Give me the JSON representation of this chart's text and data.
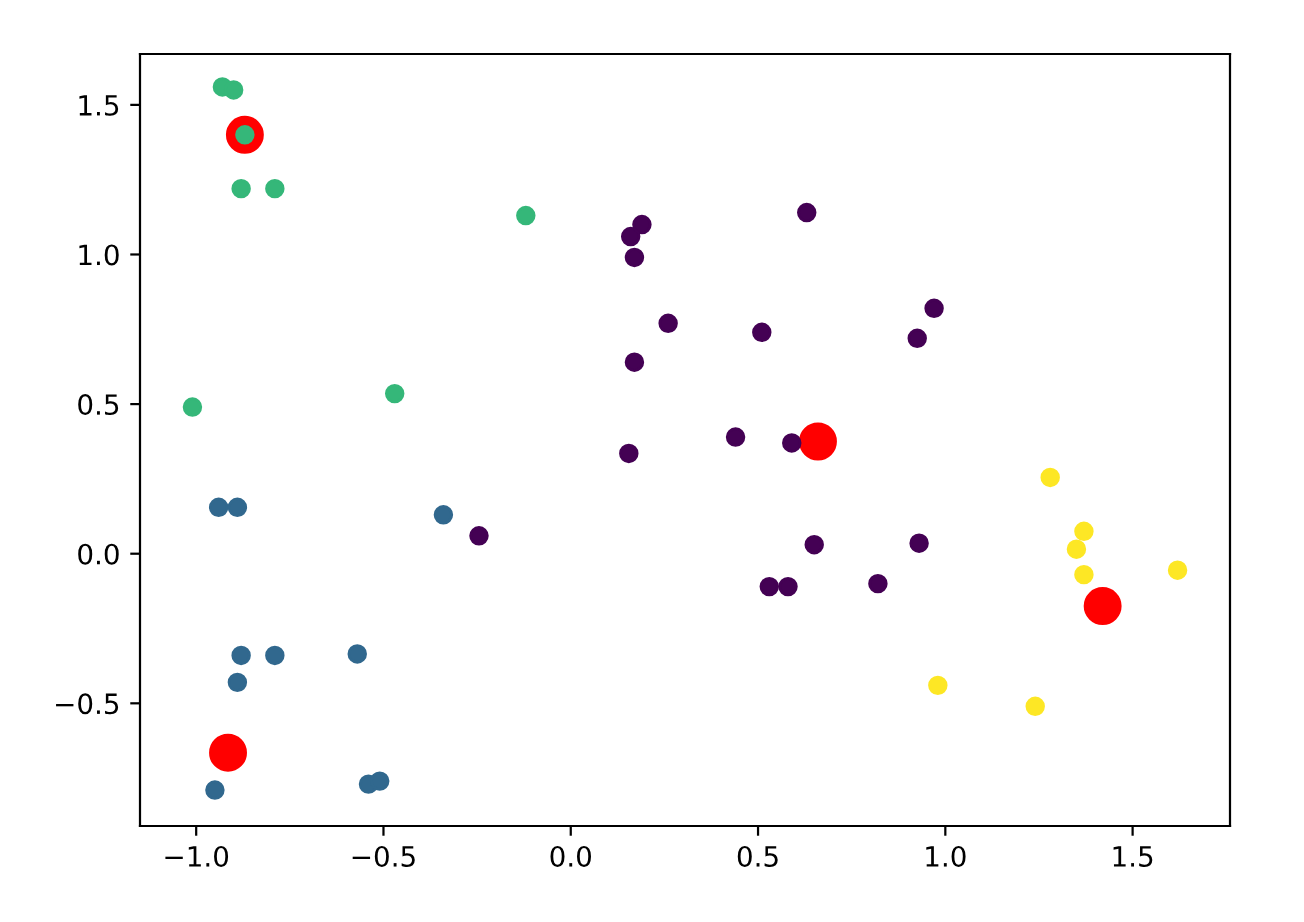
{
  "chart_data": {
    "type": "scatter",
    "xlim": [
      -1.15,
      1.76
    ],
    "ylim": [
      -0.91,
      1.67
    ],
    "xticks": [
      {
        "value": -1.0,
        "label": "−1.0"
      },
      {
        "value": -0.5,
        "label": "−0.5"
      },
      {
        "value": 0.0,
        "label": "0.0"
      },
      {
        "value": 0.5,
        "label": "0.5"
      },
      {
        "value": 1.0,
        "label": "1.0"
      },
      {
        "value": 1.5,
        "label": "1.5"
      }
    ],
    "yticks": [
      {
        "value": -0.5,
        "label": "−0.5"
      },
      {
        "value": 0.0,
        "label": "0.0"
      },
      {
        "value": 0.5,
        "label": "0.5"
      },
      {
        "value": 1.0,
        "label": "1.0"
      },
      {
        "value": 1.5,
        "label": "1.5"
      }
    ],
    "grid": false,
    "marker": "circle",
    "series": [
      {
        "type": "bubble",
        "color": "#ff0000",
        "sizes": [
          1,
          1,
          1,
          1
        ],
        "x": [
          -0.87,
          0.66,
          1.42,
          -0.915
        ],
        "values": [
          1.4,
          0.375,
          -0.175,
          -0.665
        ]
      },
      {
        "color": "#440154",
        "x": [
          0.19,
          0.16,
          0.17,
          0.26,
          0.17,
          0.63,
          0.97,
          0.925,
          0.51,
          0.44,
          0.155,
          0.59,
          0.65,
          0.93,
          0.53,
          0.58,
          0.82,
          -0.245
        ],
        "values": [
          1.1,
          1.06,
          0.99,
          0.77,
          0.64,
          1.14,
          0.82,
          0.72,
          0.74,
          0.39,
          0.335,
          0.37,
          0.03,
          0.035,
          -0.11,
          -0.11,
          -0.1,
          0.06
        ]
      },
      {
        "color": "#31688e",
        "x": [
          -0.94,
          -0.89,
          -0.34,
          -0.88,
          -0.79,
          -0.89,
          -0.57,
          -0.95,
          -0.54,
          -0.51
        ],
        "values": [
          0.155,
          0.155,
          0.13,
          -0.34,
          -0.34,
          -0.43,
          -0.335,
          -0.79,
          -0.77,
          -0.76
        ]
      },
      {
        "color": "#35b779",
        "x": [
          -0.93,
          -0.9,
          -0.87,
          -0.88,
          -0.79,
          -0.12,
          -1.01,
          -0.47
        ],
        "values": [
          1.56,
          1.55,
          1.4,
          1.22,
          1.22,
          1.13,
          0.49,
          0.535
        ]
      },
      {
        "color": "#fde725",
        "x": [
          1.28,
          1.37,
          1.35,
          1.37,
          1.62,
          0.98,
          1.24
        ],
        "values": [
          0.255,
          0.075,
          0.015,
          -0.07,
          -0.055,
          -0.44,
          -0.51
        ]
      }
    ]
  }
}
